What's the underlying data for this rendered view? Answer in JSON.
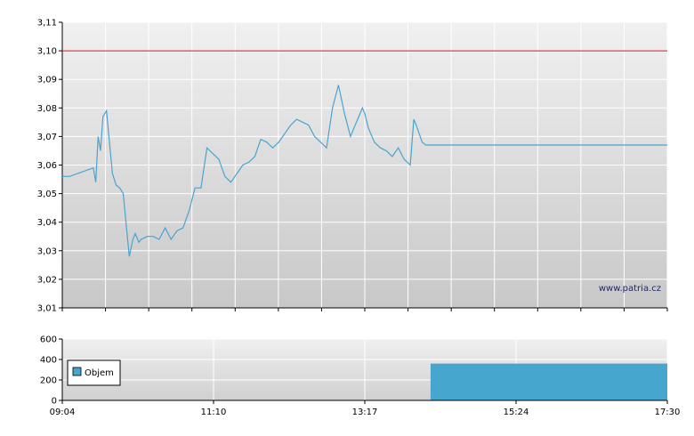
{
  "watermark": "www.patria.cz",
  "chart_data": [
    {
      "type": "line",
      "ylim": [
        3.01,
        3.11
      ],
      "y_ticks": [
        "3,01",
        "3,02",
        "3,03",
        "3,04",
        "3,05",
        "3,06",
        "3,07",
        "3,08",
        "3,09",
        "3,10",
        "3,11"
      ],
      "reference_line": 3.1,
      "reference_color": "#e01010",
      "line_color": "#4aa3cf",
      "grid": true,
      "series": [
        {
          "x": [
            "09:04",
            "09:10",
            "09:30",
            "09:32",
            "09:34",
            "09:36",
            "09:38",
            "09:41",
            "09:43",
            "09:46",
            "09:49",
            "09:52",
            "09:55",
            "10:00",
            "10:03",
            "10:05",
            "10:08",
            "10:10",
            "10:15",
            "10:20",
            "10:25",
            "10:30",
            "10:35",
            "10:40",
            "10:45",
            "10:50",
            "10:55",
            "11:00",
            "11:05",
            "11:10",
            "11:15",
            "11:20",
            "11:25",
            "11:30",
            "11:35",
            "11:40",
            "11:45",
            "11:50",
            "11:55",
            "12:00",
            "12:05",
            "12:10",
            "12:15",
            "12:20",
            "12:25",
            "12:30",
            "12:35",
            "12:40",
            "12:45",
            "12:50",
            "12:55",
            "13:00",
            "13:05",
            "13:10",
            "13:15",
            "13:17",
            "13:20",
            "13:25",
            "13:30",
            "13:35",
            "13:40",
            "13:45",
            "13:50",
            "13:55",
            "13:58",
            "14:00",
            "14:05",
            "14:08",
            "14:12",
            "17:30"
          ],
          "values": [
            3.056,
            3.056,
            3.059,
            3.054,
            3.07,
            3.065,
            3.077,
            3.079,
            3.07,
            3.057,
            3.053,
            3.052,
            3.05,
            3.028,
            3.034,
            3.036,
            3.033,
            3.034,
            3.035,
            3.035,
            3.034,
            3.038,
            3.034,
            3.037,
            3.038,
            3.044,
            3.052,
            3.052,
            3.066,
            3.064,
            3.062,
            3.056,
            3.054,
            3.057,
            3.06,
            3.061,
            3.063,
            3.069,
            3.068,
            3.066,
            3.068,
            3.071,
            3.074,
            3.076,
            3.075,
            3.074,
            3.07,
            3.068,
            3.066,
            3.08,
            3.088,
            3.078,
            3.07,
            3.075,
            3.08,
            3.078,
            3.073,
            3.068,
            3.066,
            3.065,
            3.063,
            3.066,
            3.062,
            3.06,
            3.076,
            3.074,
            3.068,
            3.067,
            3.067,
            3.067
          ]
        }
      ]
    },
    {
      "type": "bar",
      "ylim": [
        0,
        600
      ],
      "y_ticks": [
        "0",
        "200",
        "400",
        "600"
      ],
      "x_ticks": [
        "09:04",
        "11:10",
        "13:17",
        "15:24",
        "17:30"
      ],
      "bar_color": "#47a6cd",
      "legend": "top-left",
      "series": [
        {
          "name": "Objem",
          "x_start": "14:12",
          "x_end": "17:30",
          "value": 360
        }
      ]
    }
  ]
}
